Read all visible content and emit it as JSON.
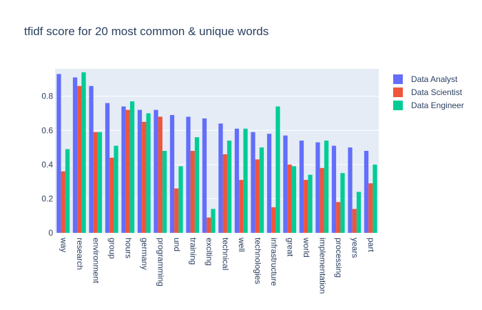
{
  "chart_data": {
    "type": "bar",
    "title": "tfidf score for 20 most common & unique words",
    "xlabel": "",
    "ylabel": "",
    "ylim": [
      0,
      0.96
    ],
    "yticks": [
      0,
      0.2,
      0.4,
      0.6,
      0.8
    ],
    "ytick_labels": [
      "0",
      "0.2",
      "0.4",
      "0.6",
      "0.8"
    ],
    "grid": true,
    "legend_position": "top-right",
    "categories": [
      "way",
      "research",
      "environment",
      "group",
      "hours",
      "germany",
      "programming",
      "und",
      "training",
      "exciting",
      "technical",
      "well",
      "technologies",
      "infrastructure",
      "great",
      "world",
      "implementation",
      "processing",
      "years",
      "part"
    ],
    "series": [
      {
        "name": "Data Analyst",
        "color": "#636efa",
        "values": [
          0.93,
          0.91,
          0.86,
          0.76,
          0.74,
          0.72,
          0.72,
          0.69,
          0.68,
          0.67,
          0.64,
          0.61,
          0.59,
          0.58,
          0.57,
          0.54,
          0.53,
          0.51,
          0.5,
          0.48
        ]
      },
      {
        "name": "Data Scientist",
        "color": "#ef553b",
        "values": [
          0.36,
          0.86,
          0.59,
          0.44,
          0.72,
          0.65,
          0.68,
          0.26,
          0.48,
          0.09,
          0.46,
          0.31,
          0.43,
          0.15,
          0.4,
          0.31,
          0.38,
          0.18,
          0.14,
          0.29
        ]
      },
      {
        "name": "Data Engineer",
        "color": "#00cc96",
        "values": [
          0.49,
          0.94,
          0.59,
          0.51,
          0.77,
          0.7,
          0.48,
          0.39,
          0.56,
          0.14,
          0.54,
          0.61,
          0.5,
          0.74,
          0.39,
          0.34,
          0.54,
          0.35,
          0.24,
          0.4
        ]
      }
    ]
  }
}
